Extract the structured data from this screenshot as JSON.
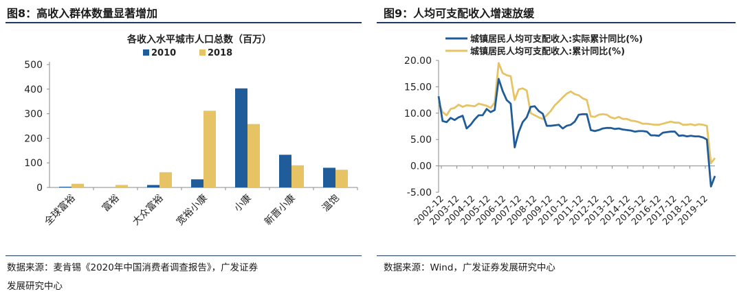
{
  "left": {
    "figure_title": "图8：高收入群体数量显著增加",
    "source_line1": "数据来源：麦肯锡《2020年中国消费者调查报告》，广发证券",
    "source_line2": "发展研究中心"
  },
  "right": {
    "figure_title": "图9：人均可支配收入增速放缓",
    "source": "数据来源：Wind，广发证券发展研究中心"
  },
  "colors": {
    "blue": "#1f5c99",
    "gold": "#e6c466",
    "rule": "#1f3864"
  },
  "chart_data": [
    {
      "type": "bar",
      "title": "各收入水平城市人口总数（百万）",
      "categories": [
        "全球富裕",
        "富裕",
        "大众富裕",
        "宽裕小康",
        "小康",
        "新晋小康",
        "温饱"
      ],
      "series": [
        {
          "name": "2010",
          "values": [
            3,
            0,
            10,
            33,
            403,
            133,
            80
          ]
        },
        {
          "name": "2018",
          "values": [
            15,
            10,
            62,
            312,
            258,
            90,
            72
          ]
        }
      ],
      "ylim": [
        0,
        500
      ],
      "yticks": [
        "0",
        "100",
        "200",
        "300",
        "400",
        "500"
      ],
      "legend_position": "top"
    },
    {
      "type": "line",
      "series": [
        {
          "name": "城镇居民人均可支配收入:实际累计同比(%)",
          "values": [
            13.2,
            8.5,
            8.3,
            9.1,
            8.7,
            9.2,
            9.5,
            7.1,
            7.8,
            8.8,
            9.6,
            9.6,
            10.8,
            10.2,
            10.6,
            16.5,
            14.2,
            12.5,
            11.8,
            3.5,
            6.4,
            8.3,
            9.2,
            11.2,
            11.3,
            10.4,
            9.9,
            7.6,
            7.6,
            7.7,
            7.8,
            7.1,
            7.6,
            7.8,
            8.4,
            9.7,
            9.8,
            9.8,
            6.8,
            6.6,
            6.8,
            7.1,
            7.2,
            7.2,
            7.0,
            7.1,
            6.9,
            6.8,
            6.7,
            6.5,
            6.6,
            6.6,
            6.5,
            5.8,
            5.8,
            5.7,
            6.3,
            6.4,
            6.5,
            6.5,
            5.7,
            5.8,
            5.6,
            5.7,
            5.6,
            5.6,
            5.4,
            5.0,
            -3.9,
            -1.9
          ]
        },
        {
          "name": "城镇居民人均可支配收入:累计同比(%)",
          "values": [
            12.0,
            10.2,
            9.6,
            10.8,
            11.0,
            11.6,
            11.2,
            11.5,
            11.4,
            11.3,
            11.8,
            11.6,
            11.4,
            11.0,
            12.0,
            19.5,
            17.6,
            17.2,
            17.0,
            12.5,
            14.5,
            14.7,
            14.3,
            10.0,
            9.6,
            9.2,
            8.9,
            9.6,
            10.4,
            11.5,
            12.2,
            13.0,
            13.7,
            14.1,
            13.6,
            13.4,
            12.8,
            12.5,
            9.4,
            9.3,
            9.7,
            9.8,
            9.7,
            9.2,
            9.0,
            9.3,
            8.9,
            8.9,
            8.6,
            8.5,
            8.3,
            8.0,
            8.0,
            7.9,
            7.8,
            7.8,
            8.0,
            8.2,
            8.4,
            8.2,
            8.2,
            7.8,
            7.8,
            7.9,
            7.7,
            7.9,
            7.8,
            7.6,
            0.5,
            1.5
          ]
        }
      ],
      "x_labels": [
        "2002-12",
        "2003-12",
        "2004-12",
        "2005-12",
        "2006-12",
        "2007-12",
        "2008-12",
        "2009-12",
        "2010-12",
        "2011-12",
        "2012-12",
        "2013-12",
        "2014-12",
        "2015-12",
        "2016-12",
        "2017-12",
        "2018-12",
        "2019-12"
      ],
      "yticks": [
        "-5.00",
        "0.00",
        "5.00",
        "10.00",
        "15.00",
        "20.00"
      ],
      "ylim": [
        -5,
        20
      ],
      "legend_position": "top-right"
    }
  ]
}
